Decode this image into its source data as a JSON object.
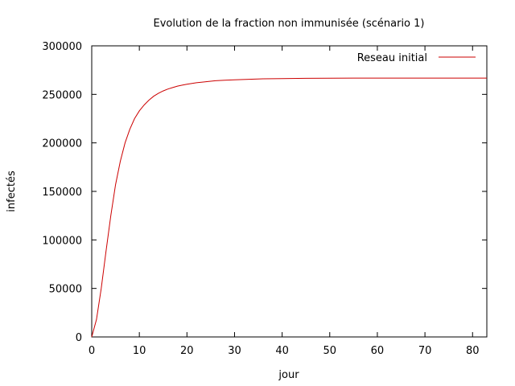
{
  "chart_data": {
    "type": "line",
    "title": "Evolution de la fraction non immunisée (scénario 1)",
    "xlabel": "jour",
    "ylabel": "infectés",
    "xlim": [
      0,
      83
    ],
    "ylim": [
      0,
      300000
    ],
    "x_ticks": [
      0,
      10,
      20,
      30,
      40,
      50,
      60,
      70,
      80
    ],
    "y_ticks": [
      0,
      50000,
      100000,
      150000,
      200000,
      250000,
      300000
    ],
    "legend_position": "top-right",
    "grid": false,
    "series": [
      {
        "name": "Reseau initial",
        "color": "#cc0000",
        "x": [
          0,
          1,
          2,
          3,
          4,
          5,
          6,
          7,
          8,
          9,
          10,
          11,
          12,
          13,
          14,
          15,
          16,
          17,
          18,
          19,
          20,
          22,
          24,
          26,
          28,
          30,
          33,
          36,
          40,
          45,
          50,
          55,
          60,
          65,
          70,
          75,
          80,
          83
        ],
        "y": [
          0,
          18000,
          50000,
          88000,
          125000,
          157000,
          181000,
          200000,
          214000,
          225000,
          233000,
          239000,
          244000,
          248000,
          251000,
          253500,
          255500,
          257000,
          258500,
          259500,
          260500,
          262000,
          263000,
          264000,
          264500,
          265000,
          265500,
          266000,
          266200,
          266500,
          266700,
          266800,
          266800,
          266800,
          266800,
          266800,
          266800,
          266800
        ]
      }
    ]
  }
}
